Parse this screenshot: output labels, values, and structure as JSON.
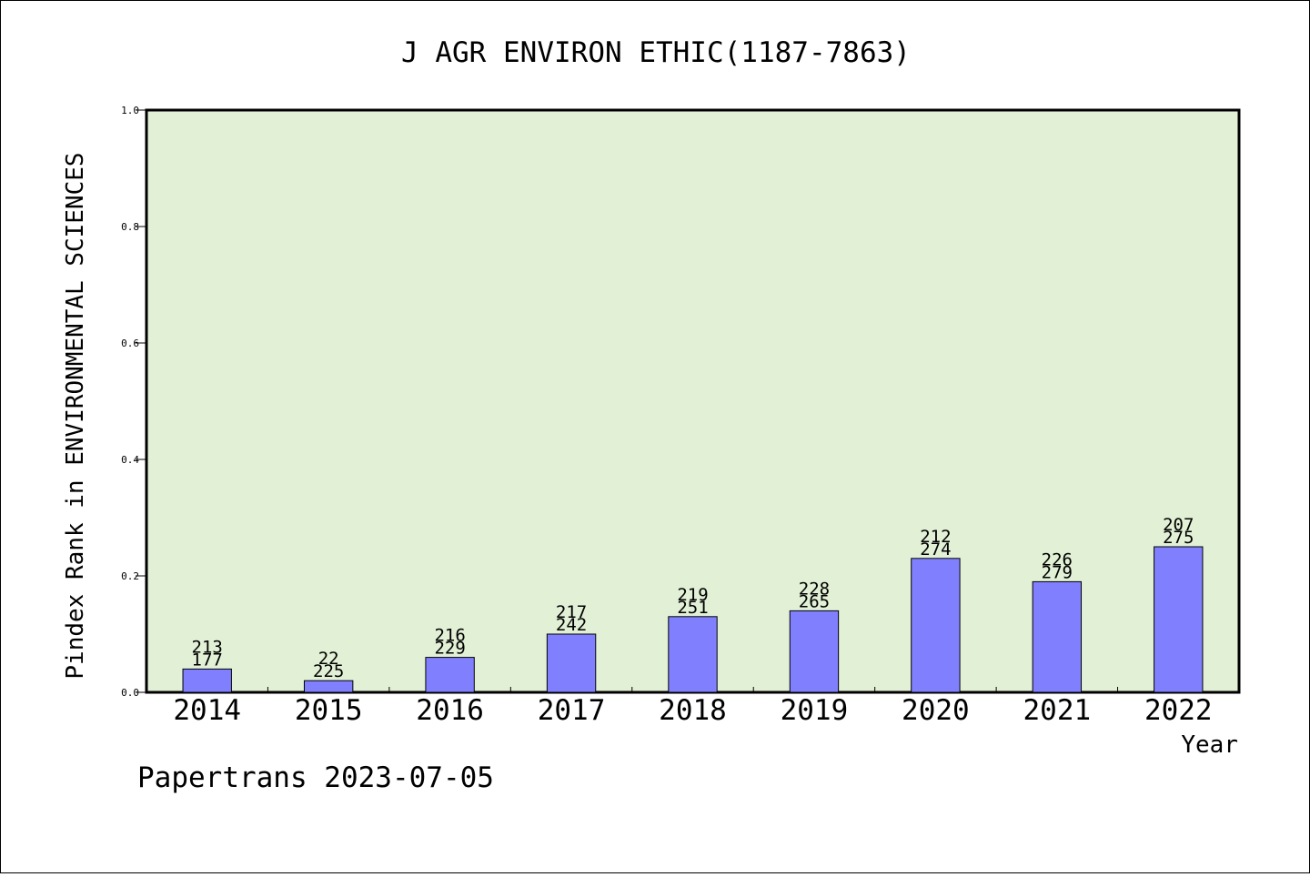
{
  "chart_data": {
    "type": "bar",
    "title": "J AGR ENVIRON ETHIC(1187-7863)",
    "xlabel": "Year",
    "ylabel": "Pindex Rank in ENVIRONMENTAL SCIENCES",
    "footer": "Papertrans 2023-07-05",
    "ylim": [
      0,
      1.0
    ],
    "yticks": [
      "0.0",
      "0.2",
      "0.4",
      "0.6",
      "0.8",
      "1.0"
    ],
    "ytick_values": [
      0,
      0.2,
      0.4,
      0.6,
      0.8,
      1.0
    ],
    "categories": [
      "2014",
      "2015",
      "2016",
      "2017",
      "2018",
      "2019",
      "2020",
      "2021",
      "2022"
    ],
    "values": [
      0.04,
      0.02,
      0.06,
      0.1,
      0.13,
      0.14,
      0.23,
      0.19,
      0.25
    ],
    "label_top": [
      "213",
      "22",
      "216",
      "217",
      "219",
      "228",
      "212",
      "226",
      "207"
    ],
    "label_bottom": [
      "177",
      "225",
      "229",
      "242",
      "251",
      "265",
      "274",
      "279",
      "275"
    ],
    "colors": {
      "plot_bg": "#e2f0d6",
      "bar": "#8080ff",
      "axis": "#000000"
    },
    "grid": false,
    "legend": "none"
  }
}
